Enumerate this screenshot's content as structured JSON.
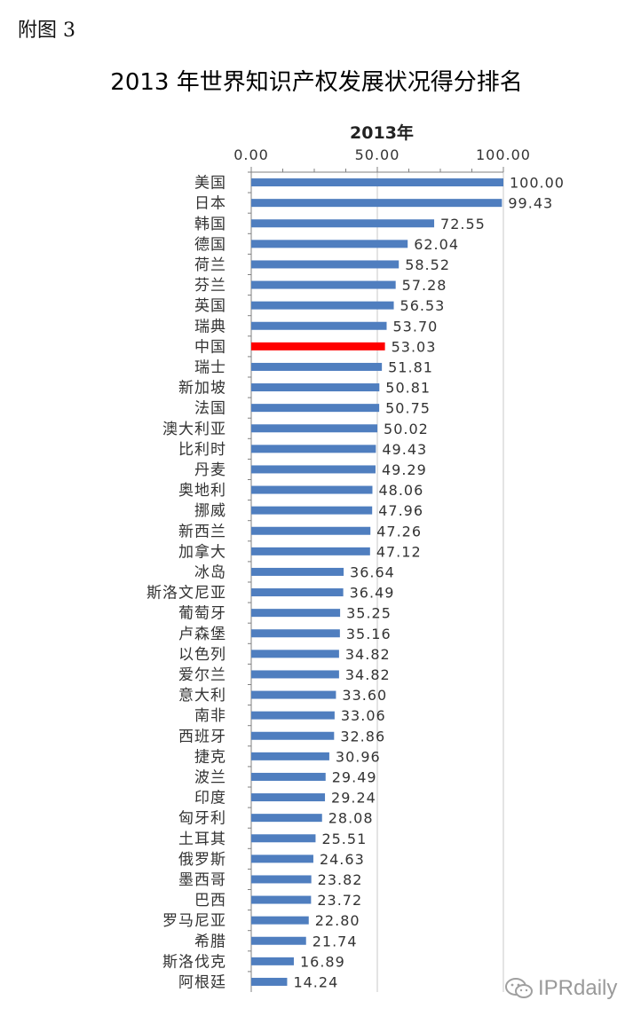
{
  "figure_label": "附图 3",
  "chart_data": {
    "type": "bar",
    "orientation": "horizontal",
    "title": "2013 年世界知识产权发展状况得分排名",
    "series": [
      {
        "name": "2013年",
        "values": [
          100.0,
          99.43,
          72.55,
          62.04,
          58.52,
          57.28,
          56.53,
          53.7,
          53.03,
          51.81,
          50.81,
          50.75,
          50.02,
          49.43,
          49.29,
          48.06,
          47.96,
          47.26,
          47.12,
          36.64,
          36.49,
          35.25,
          35.16,
          34.82,
          34.82,
          33.6,
          33.06,
          32.86,
          30.96,
          29.49,
          29.24,
          28.08,
          25.51,
          24.63,
          23.82,
          23.72,
          22.8,
          21.74,
          16.89,
          14.24
        ]
      }
    ],
    "categories": [
      "美国",
      "日本",
      "韩国",
      "德国",
      "荷兰",
      "芬兰",
      "英国",
      "瑞典",
      "中国",
      "瑞士",
      "新加坡",
      "法国",
      "澳大利亚",
      "比利时",
      "丹麦",
      "奥地利",
      "挪威",
      "新西兰",
      "加拿大",
      "冰岛",
      "斯洛文尼亚",
      "葡萄牙",
      "卢森堡",
      "以色列",
      "爱尔兰",
      "意大利",
      "南非",
      "西班牙",
      "捷克",
      "波兰",
      "印度",
      "匈牙利",
      "土耳其",
      "俄罗斯",
      "墨西哥",
      "巴西",
      "罗马尼亚",
      "希腊",
      "斯洛伐克",
      "阿根廷"
    ],
    "value_labels": [
      "100.00",
      "99.43",
      "72.55",
      "62.04",
      "58.52",
      "57.28",
      "56.53",
      "53.70",
      "53.03",
      "51.81",
      "50.81",
      "50.75",
      "50.02",
      "49.43",
      "49.29",
      "48.06",
      "47.96",
      "47.26",
      "47.12",
      "36.64",
      "36.49",
      "35.25",
      "35.16",
      "34.82",
      "34.82",
      "33.60",
      "33.06",
      "32.86",
      "30.96",
      "29.49",
      "29.24",
      "28.08",
      "25.51",
      "24.63",
      "23.82",
      "23.72",
      "22.80",
      "21.74",
      "16.89",
      "14.24"
    ],
    "xlim": [
      0,
      100
    ],
    "x_ticks": [
      0,
      50,
      100
    ],
    "x_tick_labels": [
      "0.00",
      "50.00",
      "100.00"
    ],
    "axis_position": "top",
    "grid": true,
    "colors": {
      "bar": "#4f7ebf",
      "highlight": "#ff0000",
      "grid": "#c8c8c8",
      "axis": "#808080"
    },
    "highlight_category": "中国"
  },
  "watermark": {
    "text": "IPRdaily",
    "icon": "wechat-icon"
  }
}
